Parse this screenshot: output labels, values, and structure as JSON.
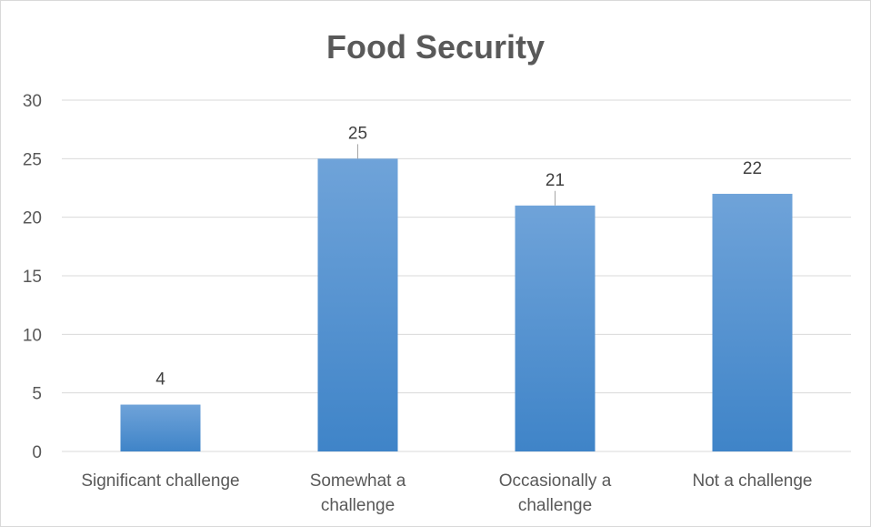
{
  "chart_data": {
    "type": "bar",
    "title": "Food Security",
    "categories": [
      "Significant challenge",
      "Somewhat a challenge",
      "Occasionally a challenge",
      "Not a challenge"
    ],
    "category_lines": [
      [
        "Significant challenge"
      ],
      [
        "Somewhat a",
        "challenge"
      ],
      [
        "Occasionally a",
        "challenge"
      ],
      [
        "Not a challenge"
      ]
    ],
    "values": [
      4,
      25,
      21,
      22
    ],
    "data_labels": [
      "4",
      "25",
      "21",
      "22"
    ],
    "xlabel": "",
    "ylabel": "",
    "ylim": [
      0,
      30
    ],
    "yticks": [
      0,
      5,
      10,
      15,
      20,
      25,
      30
    ],
    "grid": true,
    "legend": "none",
    "colors": {
      "bar_top": "#6fa3d9",
      "bar_bottom": "#3f84c8",
      "grid": "#d9d9d9",
      "text": "#595959"
    }
  }
}
